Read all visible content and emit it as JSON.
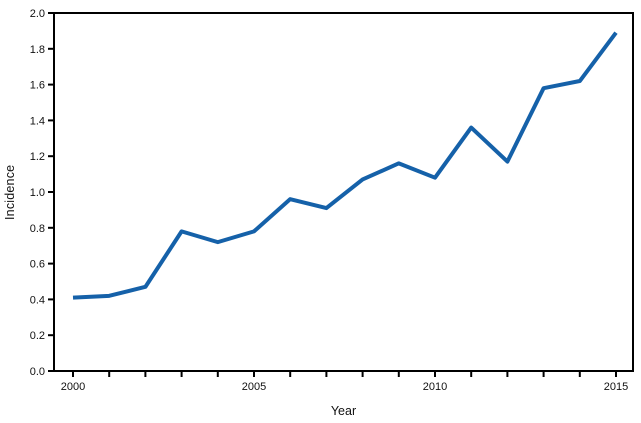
{
  "chart_data": {
    "type": "line",
    "title": "",
    "xlabel": "Year",
    "ylabel": "Incidence",
    "x": [
      2000,
      2001,
      2002,
      2003,
      2004,
      2005,
      2006,
      2007,
      2008,
      2009,
      2010,
      2011,
      2012,
      2013,
      2014,
      2015
    ],
    "series": [
      {
        "name": "Incidence",
        "values": [
          0.41,
          0.42,
          0.47,
          0.78,
          0.72,
          0.78,
          0.96,
          0.91,
          1.07,
          1.16,
          1.08,
          1.36,
          1.17,
          1.58,
          1.62,
          1.89
        ],
        "color": "#1561a9"
      }
    ],
    "xlim": [
      2000,
      2015
    ],
    "ylim": [
      0.0,
      2.0
    ],
    "y_tick_labels": [
      "0.0",
      "0.2",
      "0.4",
      "0.6",
      "0.8",
      "1.0",
      "1.2",
      "1.4",
      "1.6",
      "1.8",
      "2.0"
    ],
    "x_labeled_ticks": [
      "2000",
      "2005",
      "2010",
      "2015"
    ],
    "grid": false,
    "legend_position": "none",
    "axis_color": "#000000",
    "text_color": "#111111"
  }
}
